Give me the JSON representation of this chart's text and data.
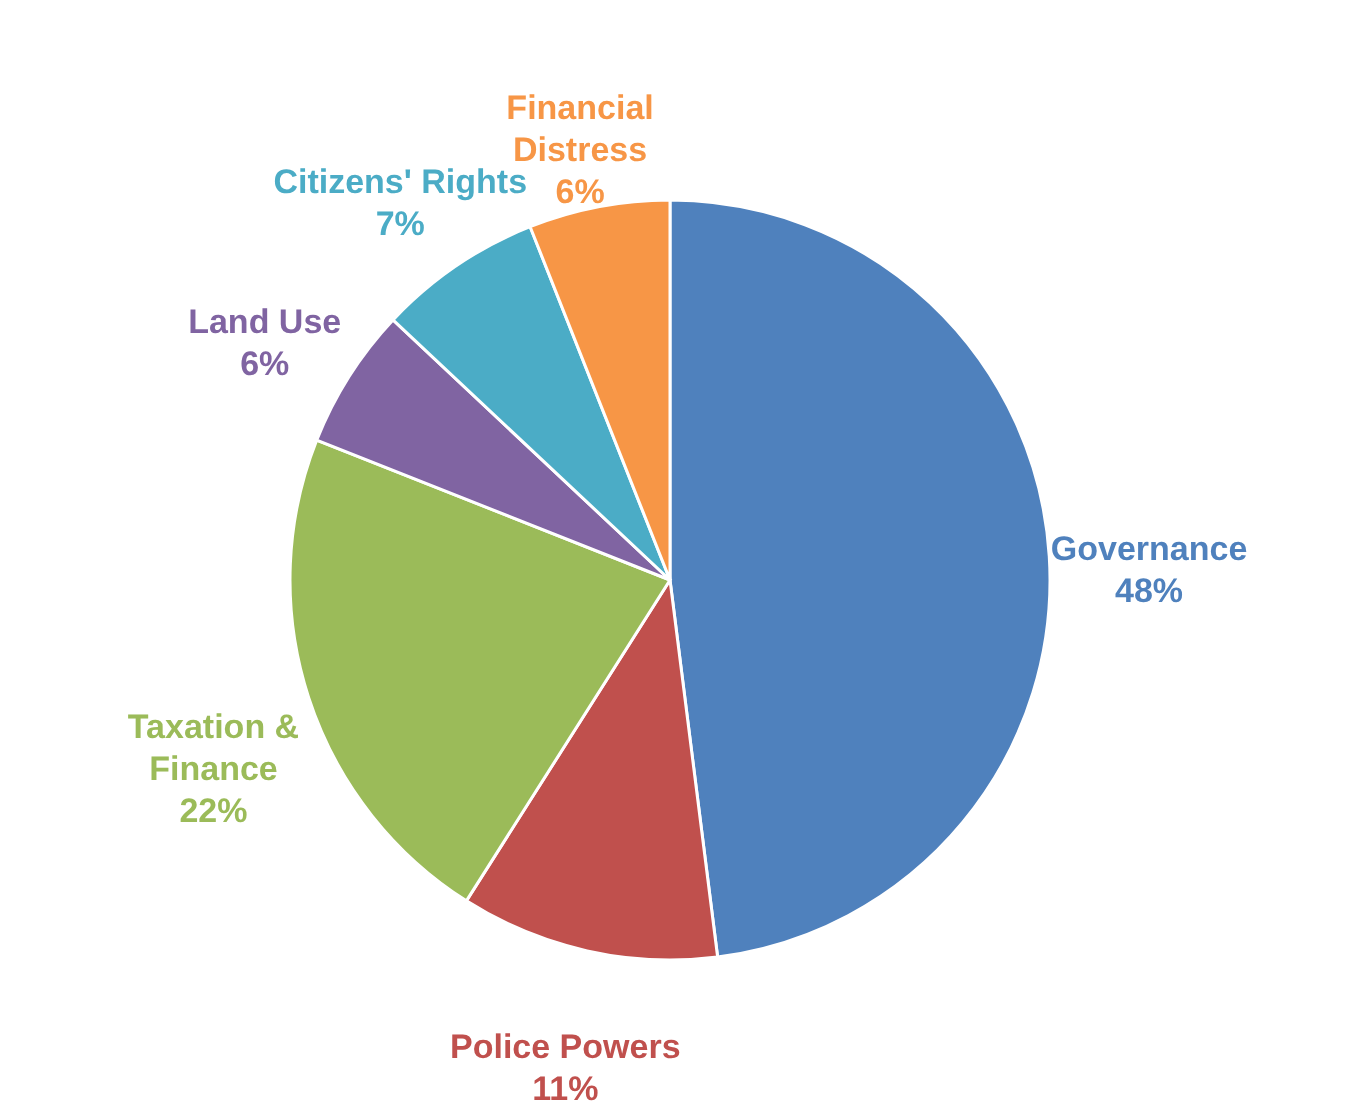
{
  "chart_data": {
    "type": "pie",
    "categories": [
      "Governance",
      "Police Powers",
      "Taxation & Finance",
      "Land Use",
      "Citizens' Rights",
      "Financial Distress"
    ],
    "values": [
      48,
      11,
      22,
      6,
      7,
      6
    ],
    "colors": [
      "#4f81bd",
      "#c0504d",
      "#9bbb59",
      "#8064a2",
      "#4bacc6",
      "#f79646"
    ],
    "value_labels": [
      "48%",
      "11%",
      "22%",
      "6%",
      "7%",
      "6%"
    ],
    "legend": false
  }
}
